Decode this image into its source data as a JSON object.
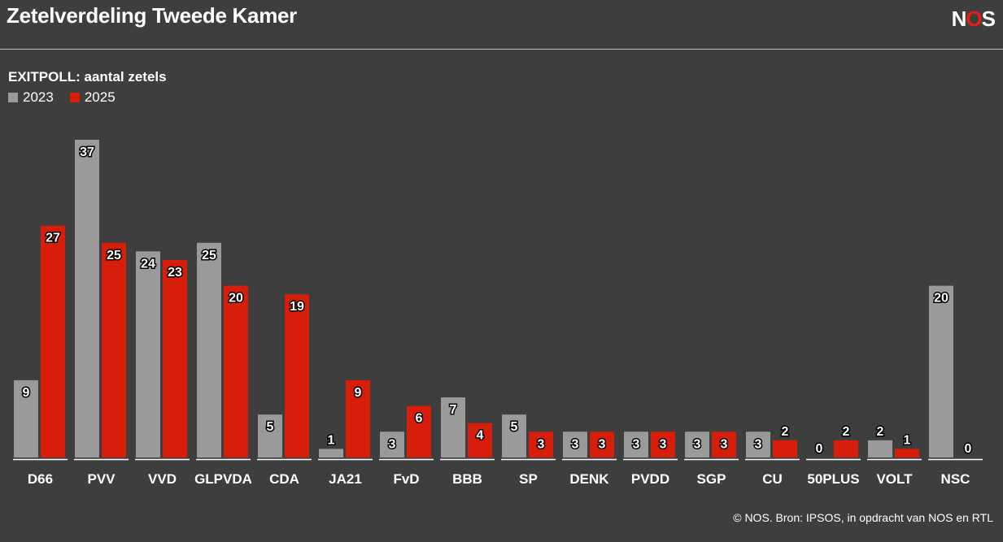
{
  "header": {
    "title": "Zetelverdeling Tweede Kamer",
    "logo_n": "N",
    "logo_o": "O",
    "logo_s": "S"
  },
  "subtitle": "EXITPOLL: aantal zetels",
  "footer": {
    "source": "© NOS. Bron: IPSOS, in opdracht van NOS en RTL"
  },
  "colors": {
    "series_2023": "#9a9a9a",
    "series_2025": "#d71e0a",
    "background": "#3e3e3e",
    "brand": "#e61e14"
  },
  "chart_data": {
    "type": "bar",
    "title": "Zetelverdeling Tweede Kamer",
    "subtitle": "EXITPOLL: aantal zetels",
    "categories": [
      "D66",
      "PVV",
      "VVD",
      "GLPVDA",
      "CDA",
      "JA21",
      "FvD",
      "BBB",
      "SP",
      "DENK",
      "PVDD",
      "SGP",
      "CU",
      "50PLUS",
      "VOLT",
      "NSC"
    ],
    "series": [
      {
        "name": "2023",
        "color": "#9a9a9a",
        "values": [
          9,
          37,
          24,
          25,
          5,
          1,
          3,
          7,
          5,
          3,
          3,
          3,
          3,
          0,
          2,
          20
        ]
      },
      {
        "name": "2025",
        "color": "#d71e0a",
        "values": [
          27,
          25,
          23,
          20,
          19,
          9,
          6,
          4,
          3,
          3,
          3,
          3,
          2,
          2,
          1,
          0
        ]
      }
    ],
    "ylim": [
      0,
      37
    ],
    "grid": false,
    "legend_position": "top-left",
    "data_labels": true
  }
}
